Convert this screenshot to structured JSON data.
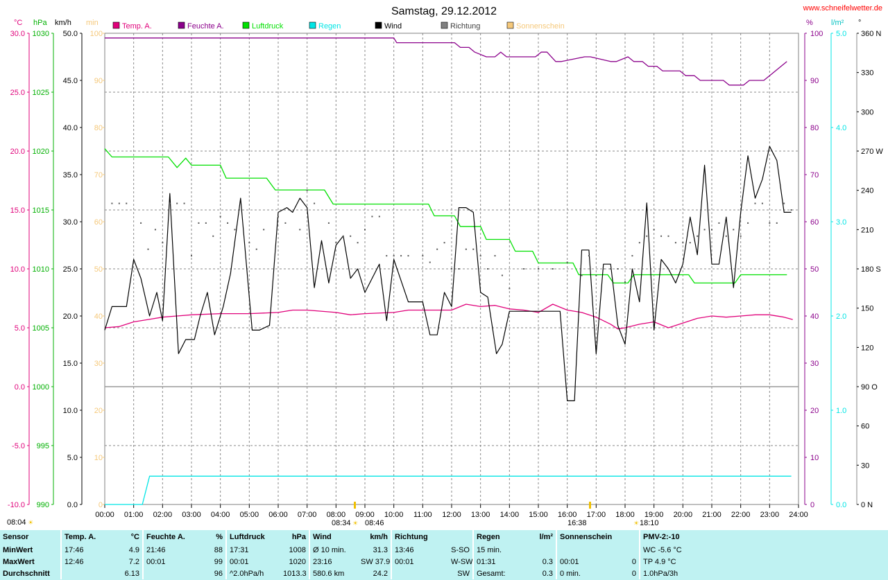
{
  "title": "Samstag, 29.12.2012",
  "website": "www.schneifelwetter.de",
  "units": {
    "temp": "°C",
    "pressure": "hPa",
    "wind": "km/h",
    "sun": "min",
    "humidity": "%",
    "rain": "l/m²",
    "direction": "°"
  },
  "legend": [
    {
      "label": "Temp. A.",
      "color": "#e0007a"
    },
    {
      "label": "Feuchte A.",
      "color": "#8b008b"
    },
    {
      "label": "Luftdruck",
      "color": "#00e000"
    },
    {
      "label": "Regen",
      "color": "#00e5e5"
    },
    {
      "label": "Wind",
      "color": "#000000"
    },
    {
      "label": "Richtung",
      "color": "#808080"
    },
    {
      "label": "Sonnenschein",
      "color": "#f5c87a"
    }
  ],
  "axes": {
    "temp": {
      "ticks": [
        "30.0",
        "25.0",
        "20.0",
        "15.0",
        "10.0",
        "5.0",
        "0.0",
        "-5.0",
        "-10.0"
      ],
      "color": "#e0007a"
    },
    "pressure": {
      "ticks": [
        "1030",
        "1025",
        "1020",
        "1015",
        "1010",
        "1005",
        "1000",
        "995",
        "990"
      ],
      "color": "#00b000"
    },
    "wind": {
      "ticks": [
        "50.0",
        "45.0",
        "40.0",
        "35.0",
        "30.0",
        "25.0",
        "20.0",
        "15.0",
        "10.0",
        "5.0",
        "0.0"
      ],
      "color": "#000000"
    },
    "sun": {
      "ticks": [
        "100",
        "90",
        "80",
        "70",
        "60",
        "50",
        "40",
        "30",
        "20",
        "10",
        "0"
      ],
      "color": "#f5c87a"
    },
    "humidity": {
      "ticks": [
        "100",
        "90",
        "80",
        "70",
        "60",
        "50",
        "40",
        "30",
        "20",
        "10",
        "0"
      ],
      "color": "#8b008b"
    },
    "rain": {
      "ticks": [
        "5.0",
        "4.0",
        "3.0",
        "2.0",
        "1.0",
        "0.0"
      ],
      "color": "#00e5e5"
    },
    "direction": {
      "ticks": [
        "360 N",
        "330",
        "300",
        "270 W",
        "240",
        "210",
        "180 S",
        "150",
        "120",
        "90 O",
        "60",
        "30",
        "0 N"
      ],
      "color": "#000000"
    },
    "time": {
      "ticks": [
        "00:00",
        "01:00",
        "02:00",
        "03:00",
        "04:00",
        "05:00",
        "06:00",
        "07:00",
        "08:00",
        "09:00",
        "10:00",
        "11:00",
        "12:00",
        "13:00",
        "14:00",
        "15:00",
        "16:00",
        "17:00",
        "18:00",
        "19:00",
        "20:00",
        "21:00",
        "22:00",
        "23:00",
        "24:00"
      ]
    }
  },
  "markers": {
    "sunrise": "08:34",
    "sunrise_alt": "08:46",
    "sunset": "16:38",
    "sunset_alt": "18:10"
  },
  "chart_data": {
    "type": "line",
    "title": "Samstag, 29.12.2012",
    "x_unit": "hours",
    "xlim": [
      0,
      24
    ],
    "series": [
      {
        "name": "Temp. A.",
        "axis": "temp",
        "ylim": [
          -10,
          30
        ],
        "x": [
          0,
          0.5,
          1,
          1.5,
          2,
          2.5,
          3,
          4,
          5,
          6,
          6.5,
          7,
          8,
          8.5,
          9,
          10,
          10.5,
          11,
          12,
          12.5,
          13,
          13.5,
          14,
          14.5,
          15,
          15.5,
          16,
          16.5,
          17,
          17.5,
          17.75,
          18,
          18.5,
          19,
          19.5,
          20,
          20.5,
          21,
          21.5,
          22,
          22.5,
          23,
          23.5,
          23.8
        ],
        "values": [
          5.0,
          5.1,
          5.5,
          5.7,
          5.9,
          6.0,
          6.1,
          6.2,
          6.2,
          6.3,
          6.5,
          6.5,
          6.3,
          6.1,
          6.2,
          6.3,
          6.5,
          6.5,
          6.5,
          7.0,
          6.8,
          6.9,
          6.6,
          6.5,
          6.3,
          7.0,
          6.5,
          6.3,
          5.9,
          5.3,
          4.9,
          5.0,
          5.3,
          5.5,
          5.0,
          5.4,
          5.8,
          6.0,
          5.9,
          6.0,
          6.1,
          6.1,
          5.9,
          5.7
        ]
      },
      {
        "name": "Feuchte A.",
        "axis": "humidity",
        "ylim": [
          0,
          100
        ],
        "x": [
          0,
          10,
          10.1,
          12.1,
          12.3,
          12.6,
          12.8,
          13.2,
          13.5,
          13.7,
          13.9,
          14.1,
          14.9,
          15.1,
          15.3,
          15.6,
          15.8,
          16.6,
          16.8,
          17.5,
          17.7,
          18.1,
          18.3,
          18.6,
          18.8,
          19.1,
          19.3,
          19.9,
          20.1,
          20.4,
          20.6,
          21.4,
          21.6,
          22.1,
          22.3,
          22.8,
          23,
          23.6
        ],
        "values": [
          99,
          99,
          98,
          98,
          97,
          97,
          96,
          95,
          95,
          96,
          95,
          95,
          95,
          96,
          96,
          94,
          94,
          95,
          95,
          94,
          94,
          95,
          94,
          94,
          93,
          93,
          92,
          92,
          91,
          91,
          90,
          90,
          89,
          89,
          90,
          90,
          91,
          94
        ]
      },
      {
        "name": "Luftdruck",
        "axis": "pressure",
        "ylim": [
          990,
          1030
        ],
        "x": [
          0,
          0.25,
          2.2,
          2.5,
          2.8,
          3.0,
          4.0,
          4.2,
          5.6,
          5.9,
          7.6,
          7.9,
          11.2,
          11.4,
          12.1,
          12.3,
          13,
          13.2,
          14,
          14.2,
          14.8,
          15,
          16.2,
          16.4,
          17.4,
          17.6,
          18.1,
          18.3,
          19,
          20.2,
          20.4,
          21.8,
          22,
          23.6
        ],
        "values": [
          1020.2,
          1019.5,
          1019.5,
          1018.6,
          1019.4,
          1018.8,
          1018.8,
          1017.7,
          1017.7,
          1016.7,
          1016.7,
          1015.5,
          1015.5,
          1014.5,
          1014.5,
          1013.6,
          1013.6,
          1012.5,
          1012.5,
          1011.5,
          1011.5,
          1010.5,
          1010.5,
          1009.5,
          1009.5,
          1008.8,
          1008.8,
          1009.5,
          1009.5,
          1009.5,
          1008.8,
          1008.8,
          1009.5,
          1009.5
        ]
      },
      {
        "name": "Wind",
        "axis": "wind",
        "ylim": [
          0,
          50
        ],
        "x": [
          0,
          0.25,
          0.75,
          1.0,
          1.25,
          1.55,
          1.8,
          2.0,
          2.25,
          2.55,
          2.8,
          3.1,
          3.3,
          3.55,
          3.8,
          4.1,
          4.35,
          4.7,
          5.1,
          5.35,
          5.7,
          6.0,
          6.3,
          6.5,
          6.75,
          7.0,
          7.25,
          7.5,
          7.75,
          8.0,
          8.25,
          8.5,
          8.75,
          9.0,
          9.25,
          9.5,
          9.75,
          10.0,
          10.5,
          10.75,
          11.0,
          11.25,
          11.5,
          11.75,
          12.0,
          12.25,
          12.5,
          12.75,
          13.0,
          13.25,
          13.55,
          13.75,
          14.0,
          14.5,
          15.0,
          15.5,
          15.75,
          16.0,
          16.25,
          16.5,
          16.75,
          17.0,
          17.25,
          17.5,
          17.75,
          18.0,
          18.25,
          18.5,
          18.75,
          19.0,
          19.25,
          19.5,
          19.75,
          20.0,
          20.25,
          20.5,
          20.75,
          21.0,
          21.25,
          21.5,
          21.75,
          22.0,
          22.25,
          22.5,
          22.75,
          23.0,
          23.25,
          23.5,
          23.75
        ],
        "values": [
          18.5,
          21.0,
          21.0,
          26.0,
          24.0,
          20.0,
          22.5,
          19.5,
          33.0,
          16.0,
          17.5,
          17.5,
          20.0,
          22.5,
          18.0,
          21.0,
          24.5,
          32.5,
          18.5,
          18.5,
          19.0,
          31.0,
          31.5,
          31.0,
          32.5,
          31.5,
          23.0,
          28.0,
          23.5,
          27.5,
          28.5,
          24.0,
          25.0,
          22.5,
          24.0,
          25.5,
          19.5,
          26.0,
          21.5,
          21.5,
          21.5,
          18.0,
          18.0,
          22.5,
          21.0,
          31.5,
          31.5,
          31.0,
          22.5,
          22.0,
          16.0,
          17.0,
          20.5,
          20.5,
          20.5,
          20.5,
          20.5,
          11.0,
          11.0,
          27.0,
          27.0,
          16.0,
          25.5,
          25.5,
          19.0,
          17.0,
          25.0,
          21.5,
          32.0,
          18.5,
          26.0,
          25.0,
          23.5,
          25.5,
          30.5,
          26.5,
          36.0,
          25.5,
          25.5,
          30.5,
          23.0,
          31.0,
          37.0,
          32.5,
          34.5,
          38.0,
          36.5,
          31.0,
          31.0
        ]
      },
      {
        "name": "Richtung",
        "axis": "direction",
        "ylim": [
          0,
          360
        ],
        "x": [
          0.25,
          0.5,
          0.75,
          1.25,
          1.5,
          1.75,
          2.0,
          2.25,
          2.5,
          2.75,
          3.0,
          3.25,
          3.5,
          3.75,
          4.0,
          4.25,
          4.5,
          5.0,
          5.25,
          5.5,
          6.0,
          6.25,
          6.75,
          7.0,
          7.25,
          7.75,
          8.0,
          8.25,
          8.5,
          8.75,
          9.0,
          9.25,
          9.5,
          9.75,
          10.0,
          10.25,
          10.5,
          11.0,
          11.25,
          11.5,
          11.75,
          12.0,
          12.25,
          12.5,
          12.75,
          13.0,
          13.25,
          13.5,
          13.75,
          14.0,
          14.5,
          15.0,
          15.5,
          16.0,
          16.5,
          16.75,
          17.0,
          17.25,
          17.5,
          17.75,
          18.0,
          18.25,
          18.5,
          18.75,
          19.0,
          19.25,
          19.5,
          19.75,
          20.0,
          20.25,
          20.5,
          20.75,
          21.0,
          21.25,
          21.5,
          21.75,
          22.0,
          22.25,
          22.5,
          22.75,
          23.0,
          23.25,
          23.5,
          23.75
        ],
        "values": [
          230,
          230,
          230,
          215,
          195,
          210,
          200,
          230,
          230,
          230,
          190,
          215,
          215,
          205,
          220,
          215,
          210,
          200,
          195,
          210,
          220,
          215,
          210,
          240,
          230,
          215,
          200,
          205,
          205,
          200,
          210,
          220,
          220,
          190,
          190,
          190,
          190,
          190,
          185,
          195,
          200,
          180,
          180,
          195,
          195,
          190,
          180,
          190,
          175,
          165,
          180,
          180,
          180,
          185,
          175,
          190,
          175,
          180,
          180,
          180,
          170,
          190,
          200,
          205,
          210,
          205,
          205,
          200,
          200,
          200,
          205,
          210,
          210,
          215,
          205,
          210,
          205,
          215,
          230,
          230,
          215,
          215,
          230,
          225
        ]
      },
      {
        "name": "Regen",
        "axis": "rain",
        "ylim": [
          0,
          5
        ],
        "x": [
          0,
          1.3,
          1.55,
          1.56,
          23.75
        ],
        "values": [
          0,
          0,
          0.3,
          0.3,
          0.3
        ]
      }
    ]
  },
  "summary": {
    "headers": [
      {
        "label": "Sensor",
        "unit": ""
      },
      {
        "label": "Temp. A.",
        "unit": "°C"
      },
      {
        "label": "Feuchte A.",
        "unit": "%"
      },
      {
        "label": "Luftdruck",
        "unit": "hPa"
      },
      {
        "label": "Wind",
        "unit": "km/h"
      },
      {
        "label": "Richtung",
        "unit": ""
      },
      {
        "label": "Regen",
        "unit": "l/m²"
      },
      {
        "label": "Sonnenschein min",
        "unit": ""
      },
      {
        "label": "PMV-2:-10",
        "unit": ""
      }
    ],
    "rows": [
      {
        "label": "MinWert",
        "cells": [
          [
            "17:46",
            "4.9"
          ],
          [
            "21:46",
            "88"
          ],
          [
            "17:31",
            "1008"
          ],
          [
            "Ø 10 min.",
            "31.3"
          ],
          [
            "13:46",
            "S-SO"
          ],
          [
            "15 min.",
            ""
          ],
          [
            "",
            ""
          ],
          [
            "WC -5.6 °C",
            ""
          ]
        ]
      },
      {
        "label": "MaxWert",
        "cells": [
          [
            "12:46",
            "7.2"
          ],
          [
            "00:01",
            "99"
          ],
          [
            "00:01",
            "1020"
          ],
          [
            "23:16",
            "SW 37.9"
          ],
          [
            "00:01",
            "W-SW"
          ],
          [
            "01:31",
            "0.3"
          ],
          [
            "00:01",
            "0"
          ],
          [
            "TP 4.9 °C",
            ""
          ]
        ]
      },
      {
        "label": "Durchschnitt",
        "cells": [
          [
            "",
            "6.13"
          ],
          [
            "",
            "96"
          ],
          [
            "^2.0hPa/h",
            "1013.3"
          ],
          [
            "580.6 km",
            "24.2"
          ],
          [
            "",
            "SW"
          ],
          [
            "Gesamt:",
            "0.3"
          ],
          [
            "0 min.",
            "0"
          ],
          [
            "1.0hPa/3h",
            ""
          ]
        ]
      }
    ]
  }
}
